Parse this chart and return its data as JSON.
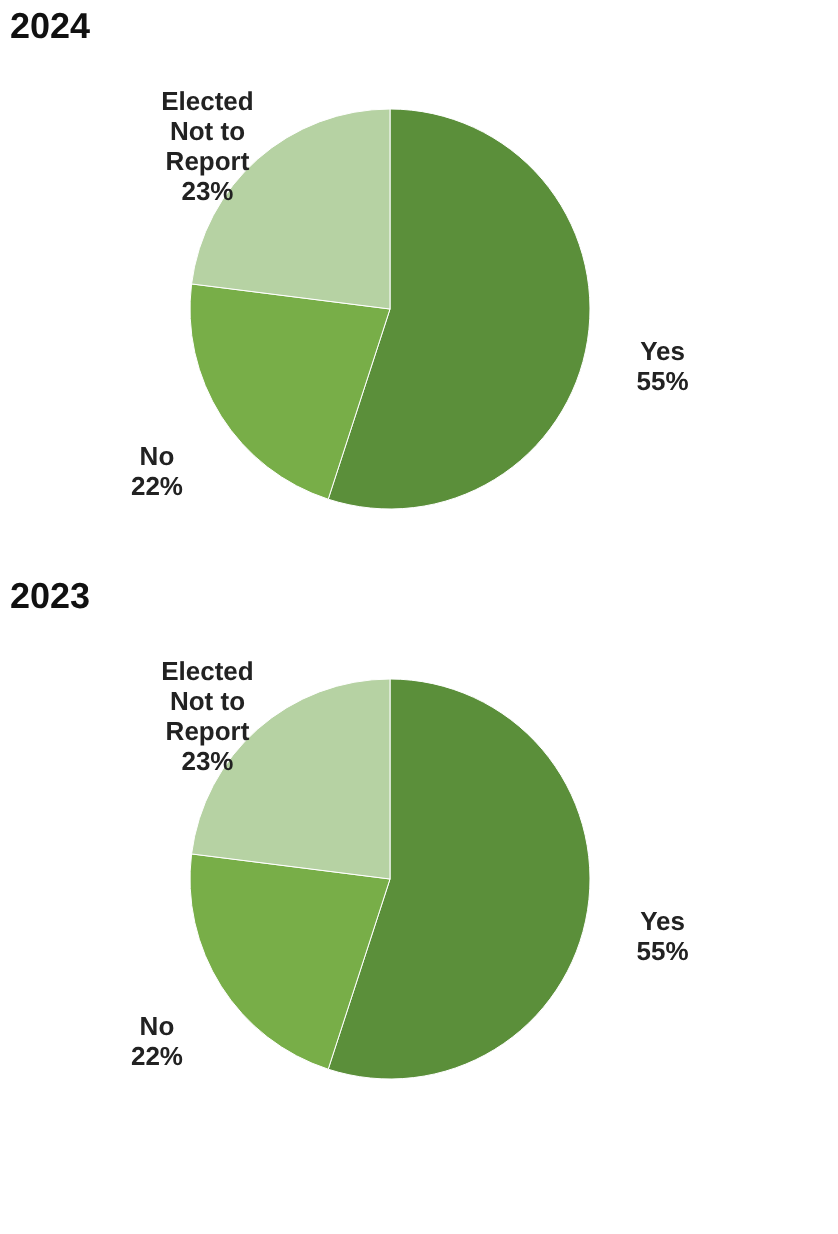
{
  "chart_data": [
    {
      "type": "pie",
      "title": "2024",
      "categories": [
        "Yes",
        "No",
        "Elected Not to Report"
      ],
      "values": [
        55,
        22,
        23
      ],
      "value_labels": [
        "55%",
        "22%",
        "23%"
      ],
      "colors": [
        "#5b8f3a",
        "#78ae48",
        "#b6d2a3"
      ],
      "legend": false
    },
    {
      "type": "pie",
      "title": "2023",
      "categories": [
        "Yes",
        "No",
        "Elected Not to Report"
      ],
      "values": [
        55,
        22,
        23
      ],
      "value_labels": [
        "55%",
        "22%",
        "23%"
      ],
      "colors": [
        "#5b8f3a",
        "#78ae48",
        "#b6d2a3"
      ],
      "legend": false
    }
  ]
}
